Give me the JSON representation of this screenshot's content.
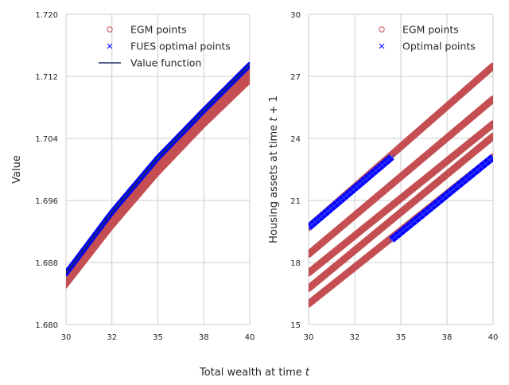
{
  "figure": {
    "xlabel": "Total wealth at time t"
  },
  "chart_data": [
    {
      "type": "scatter",
      "ylabel": "Value",
      "xlim": [
        30,
        40
      ],
      "ylim": [
        1.68,
        1.72
      ],
      "x_ticks": [
        30,
        32.5,
        35,
        37.5,
        40
      ],
      "x_tick_labels": [
        "30",
        "32",
        "35",
        "38",
        "40"
      ],
      "y_ticks": [
        1.68,
        1.688,
        1.696,
        1.704,
        1.712,
        1.72
      ],
      "y_tick_labels": [
        "1.680",
        "1.688",
        "1.696",
        "1.704",
        "1.712",
        "1.720"
      ],
      "grid": true,
      "legend_position": "top-center",
      "legend": [
        "EGM points",
        "FUES optimal points",
        "Value function"
      ],
      "series": [
        {
          "name": "EGM points",
          "marker": "circle",
          "color": "#c44e52",
          "band_lower": {
            "x": [
              30,
              32.5,
              35,
              37.5,
              40
            ],
            "y": [
              1.6848,
              1.6924,
              1.6993,
              1.7055,
              1.7112
            ]
          },
          "band_upper": {
            "x": [
              30,
              32.5,
              35,
              37.5,
              40
            ],
            "y": [
              1.6866,
              1.6945,
              1.7015,
              1.7076,
              1.7135
            ]
          }
        },
        {
          "name": "FUES optimal points",
          "marker": "x",
          "color": "#0000ff",
          "x": [
            30,
            32.5,
            35,
            37.5,
            40
          ],
          "y": [
            1.6866,
            1.6945,
            1.7015,
            1.7076,
            1.7135
          ]
        },
        {
          "name": "Value function",
          "line": true,
          "color": "#1f2a6b",
          "x": [
            30,
            32.5,
            35,
            37.5,
            40
          ],
          "y": [
            1.6866,
            1.6945,
            1.7015,
            1.7076,
            1.7135
          ]
        }
      ]
    },
    {
      "type": "scatter",
      "ylabel": "Housing assets at time t+1",
      "xlim": [
        30,
        40
      ],
      "ylim": [
        15,
        30
      ],
      "x_ticks": [
        30,
        32.5,
        35,
        37.5,
        40
      ],
      "x_tick_labels": [
        "30",
        "32",
        "35",
        "38",
        "40"
      ],
      "y_ticks": [
        15,
        18,
        21,
        24,
        27,
        30
      ],
      "y_tick_labels": [
        "15",
        "18",
        "21",
        "24",
        "27",
        "30"
      ],
      "grid": true,
      "legend_position": "top-right",
      "legend": [
        "EGM points",
        "Optimal points"
      ],
      "series": [
        {
          "name": "EGM points",
          "marker": "circle",
          "color": "#c44e52",
          "lines": [
            {
              "x": [
                30,
                40
              ],
              "y": [
                19.7,
                27.5
              ]
            },
            {
              "x": [
                30,
                40
              ],
              "y": [
                18.4,
                25.9
              ]
            },
            {
              "x": [
                30,
                40
              ],
              "y": [
                17.5,
                24.7
              ]
            },
            {
              "x": [
                30,
                40
              ],
              "y": [
                16.75,
                24.1
              ]
            },
            {
              "x": [
                30,
                40
              ],
              "y": [
                16.0,
                23.1
              ]
            }
          ]
        },
        {
          "name": "Optimal points",
          "marker": "x",
          "color": "#0000ff",
          "segments": [
            {
              "x": [
                30,
                34.5
              ],
              "y": [
                19.7,
                23.1
              ]
            },
            {
              "x": [
                34.5,
                40
              ],
              "y": [
                19.1,
                23.1
              ]
            }
          ]
        }
      ]
    }
  ]
}
